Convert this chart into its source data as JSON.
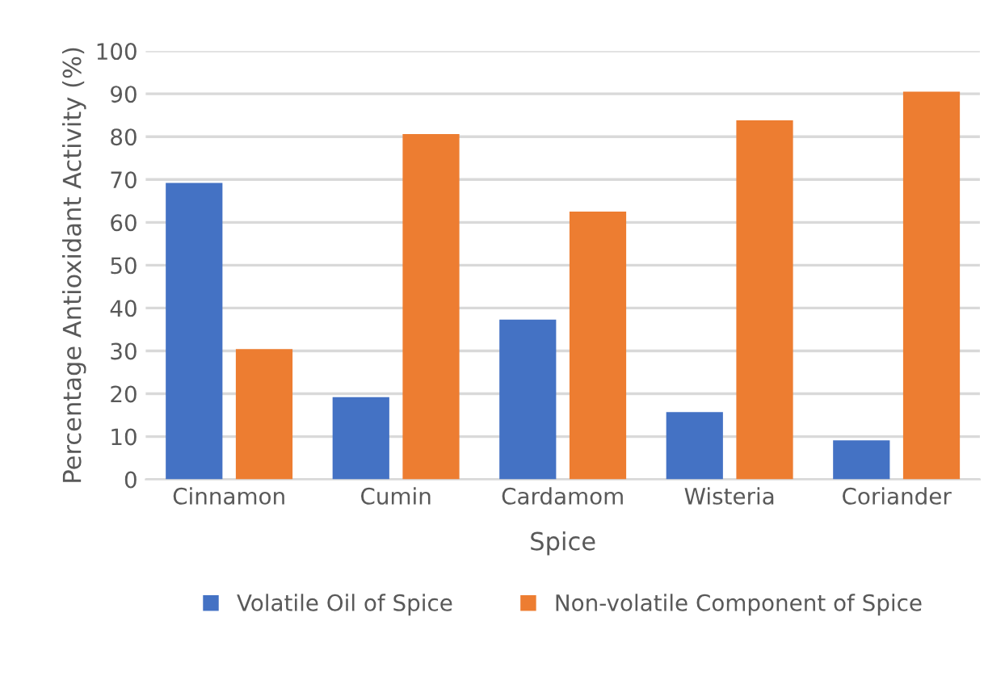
{
  "chart_data": {
    "type": "bar",
    "xlabel": "Spice",
    "ylabel": "Percentage Antioxidant Activity (%)",
    "categories": [
      "Cinnamon",
      "Cumin",
      "Cardamom",
      "Wisteria",
      "Coriander"
    ],
    "series": [
      {
        "name": "Volatile Oil of Spice",
        "color": "#4472c4",
        "values": [
          69.2,
          19.2,
          37.3,
          15.7,
          9.1
        ]
      },
      {
        "name": "Non-volatile Component of Spice",
        "color": "#ed7d31",
        "values": [
          30.4,
          80.6,
          62.5,
          83.8,
          90.5
        ]
      }
    ],
    "ylim": [
      0,
      100
    ],
    "yticks": [
      0,
      10,
      20,
      30,
      40,
      50,
      60,
      70,
      80,
      90,
      100
    ],
    "grid": "y",
    "legend": "bottom"
  }
}
